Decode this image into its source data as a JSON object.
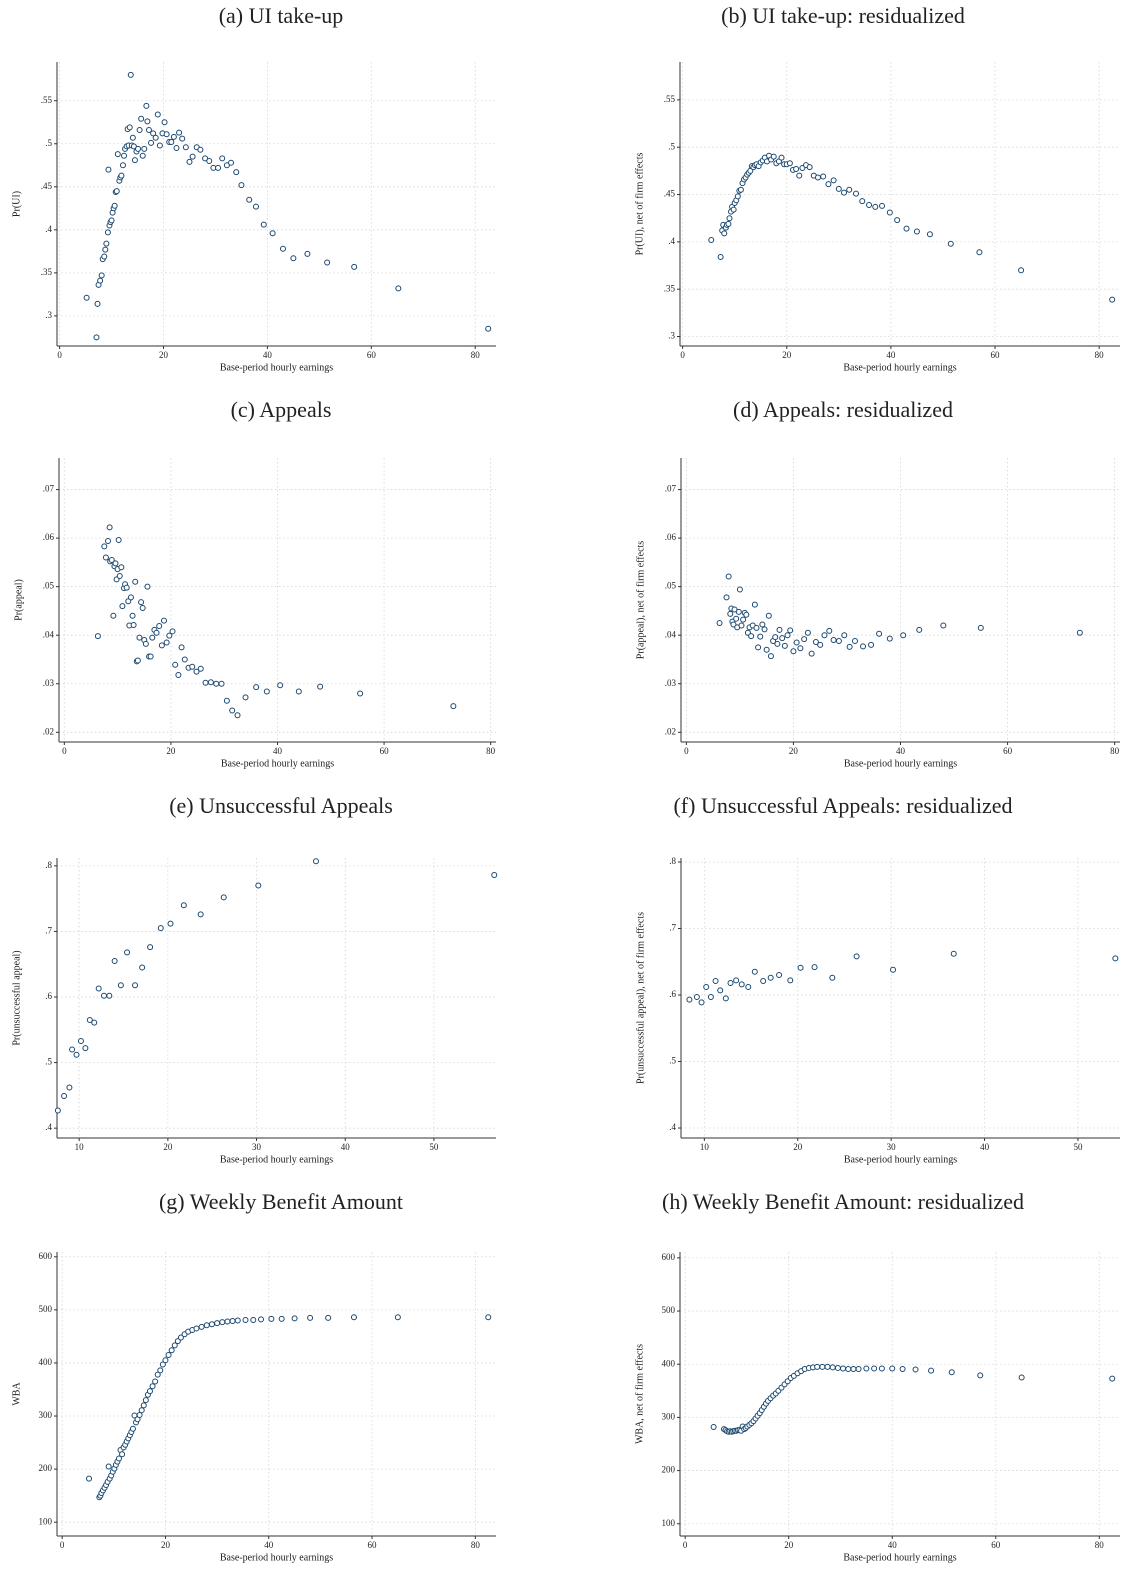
{
  "chart_data": [
    {
      "type": "scatter",
      "title": "(a) UI take-up",
      "x_label": "Base-period hourly earnings",
      "y_label": "Pr(UI)",
      "color": "#1a476f",
      "grid": true,
      "xlim": [
        -0.5,
        84
      ],
      "ylim": [
        0.265,
        0.595
      ],
      "xticks": [
        0,
        20,
        40,
        60,
        80
      ],
      "yticks": [
        {
          "value": 0.3,
          "label": ".3"
        },
        {
          "value": 0.35,
          "label": ".35"
        },
        {
          "value": 0.4,
          "label": ".4"
        },
        {
          "value": 0.45,
          "label": ".45"
        },
        {
          "value": 0.5,
          "label": ".5"
        },
        {
          "value": 0.55,
          "label": ".55"
        }
      ],
      "x": [
        5.2,
        7.1,
        7.3,
        7.5,
        7.8,
        8.1,
        8.3,
        8.6,
        8.8,
        9.0,
        9.3,
        9.4,
        9.6,
        9.8,
        10.0,
        10.2,
        10.4,
        10.6,
        10.8,
        11.0,
        11.2,
        11.5,
        11.7,
        11.9,
        12.2,
        12.4,
        12.6,
        12.9,
        13.1,
        13.3,
        13.5,
        13.7,
        13.9,
        14.1,
        14.3,
        14.5,
        14.8,
        15.1,
        15.4,
        15.7,
        16.0,
        16.3,
        16.7,
        16.9,
        17.2,
        17.6,
        18.0,
        18.5,
        18.9,
        19.3,
        19.8,
        20.2,
        20.6,
        21.1,
        21.5,
        22.0,
        22.5,
        23.0,
        23.6,
        24.3,
        25.0,
        25.6,
        26.4,
        27.1,
        28.0,
        28.8,
        29.6,
        30.5,
        31.3,
        32.2,
        33.0,
        34.0,
        35.0,
        36.5,
        37.8,
        39.3,
        41.0,
        43.0,
        45.0,
        47.7,
        51.5,
        56.7,
        65.2,
        82.5
      ],
      "values": [
        0.321,
        0.275,
        0.314,
        0.336,
        0.341,
        0.347,
        0.366,
        0.369,
        0.377,
        0.384,
        0.397,
        0.47,
        0.405,
        0.409,
        0.411,
        0.42,
        0.425,
        0.428,
        0.444,
        0.445,
        0.488,
        0.457,
        0.461,
        0.463,
        0.475,
        0.486,
        0.494,
        0.497,
        0.517,
        0.498,
        0.519,
        0.58,
        0.498,
        0.507,
        0.497,
        0.481,
        0.491,
        0.494,
        0.516,
        0.529,
        0.486,
        0.494,
        0.544,
        0.526,
        0.516,
        0.501,
        0.512,
        0.507,
        0.534,
        0.498,
        0.512,
        0.525,
        0.511,
        0.502,
        0.502,
        0.508,
        0.495,
        0.513,
        0.506,
        0.496,
        0.479,
        0.485,
        0.496,
        0.493,
        0.483,
        0.48,
        0.472,
        0.472,
        0.483,
        0.475,
        0.478,
        0.467,
        0.452,
        0.435,
        0.427,
        0.406,
        0.396,
        0.378,
        0.367,
        0.372,
        0.362,
        0.357,
        0.332,
        0.285
      ]
    },
    {
      "type": "scatter",
      "title": "(b) UI take-up: residualized",
      "x_label": "Base-period hourly earnings",
      "y_label": "Pr(UI), net of firm effects",
      "color": "#1a476f",
      "grid": true,
      "xlim": [
        -0.5,
        84
      ],
      "ylim": [
        0.29,
        0.59
      ],
      "xticks": [
        0,
        20,
        40,
        60,
        80
      ],
      "yticks": [
        {
          "value": 0.3,
          "label": ".3"
        },
        {
          "value": 0.35,
          "label": ".35"
        },
        {
          "value": 0.4,
          "label": ".4"
        },
        {
          "value": 0.45,
          "label": ".45"
        },
        {
          "value": 0.5,
          "label": ".5"
        },
        {
          "value": 0.55,
          "label": ".55"
        }
      ],
      "x": [
        5.5,
        7.3,
        7.6,
        7.8,
        8.0,
        8.3,
        8.5,
        8.8,
        9.0,
        9.3,
        9.5,
        9.8,
        10.0,
        10.3,
        10.6,
        10.9,
        11.2,
        11.5,
        11.8,
        12.1,
        12.4,
        12.7,
        13.0,
        13.3,
        13.6,
        13.9,
        14.2,
        14.6,
        15.0,
        15.4,
        15.8,
        16.2,
        16.6,
        17.0,
        17.5,
        18.0,
        18.5,
        19.0,
        19.5,
        20.0,
        20.6,
        21.2,
        21.8,
        22.4,
        23.0,
        23.7,
        24.4,
        25.2,
        26.0,
        27.0,
        28.0,
        29.0,
        30.0,
        31.0,
        32.0,
        33.3,
        34.5,
        35.8,
        37.0,
        38.3,
        39.8,
        41.2,
        43.0,
        45.0,
        47.5,
        51.5,
        57.0,
        65.0,
        82.5
      ],
      "values": [
        0.402,
        0.384,
        0.412,
        0.418,
        0.409,
        0.415,
        0.418,
        0.419,
        0.425,
        0.432,
        0.437,
        0.434,
        0.441,
        0.444,
        0.448,
        0.454,
        0.455,
        0.462,
        0.466,
        0.468,
        0.471,
        0.473,
        0.475,
        0.48,
        0.479,
        0.481,
        0.482,
        0.48,
        0.484,
        0.486,
        0.489,
        0.485,
        0.491,
        0.487,
        0.49,
        0.483,
        0.485,
        0.489,
        0.482,
        0.482,
        0.483,
        0.476,
        0.477,
        0.47,
        0.478,
        0.481,
        0.479,
        0.47,
        0.468,
        0.469,
        0.461,
        0.465,
        0.456,
        0.452,
        0.455,
        0.451,
        0.443,
        0.439,
        0.437,
        0.438,
        0.431,
        0.423,
        0.414,
        0.411,
        0.408,
        0.398,
        0.389,
        0.37,
        0.339
      ]
    },
    {
      "type": "scatter",
      "title": "(c) Appeals",
      "x_label": "Base-period hourly earnings",
      "y_label": "Pr(appeal)",
      "color": "#1a476f",
      "grid": true,
      "xlim": [
        -1,
        81
      ],
      "ylim": [
        0.018,
        0.0765
      ],
      "xticks": [
        0,
        20,
        40,
        60,
        80
      ],
      "yticks": [
        {
          "value": 0.02,
          "label": ".02"
        },
        {
          "value": 0.03,
          "label": ".03"
        },
        {
          "value": 0.04,
          "label": ".04"
        },
        {
          "value": 0.05,
          "label": ".05"
        },
        {
          "value": 0.06,
          "label": ".06"
        },
        {
          "value": 0.07,
          "label": ".07"
        }
      ],
      "x": [
        6.3,
        7.5,
        7.8,
        8.2,
        8.5,
        8.6,
        8.9,
        9.2,
        9.4,
        9.6,
        9.8,
        10.0,
        10.2,
        10.4,
        10.7,
        10.9,
        11.2,
        11.4,
        11.7,
        12.0,
        12.2,
        12.5,
        12.8,
        13.0,
        13.3,
        13.6,
        13.8,
        14.1,
        14.4,
        14.7,
        15.0,
        15.3,
        15.6,
        15.9,
        16.2,
        16.5,
        16.9,
        17.3,
        17.8,
        18.3,
        18.7,
        19.2,
        19.7,
        20.3,
        20.8,
        21.4,
        22.0,
        22.6,
        23.3,
        24.0,
        24.8,
        25.6,
        26.5,
        27.5,
        28.5,
        29.5,
        30.5,
        31.5,
        32.5,
        34.0,
        36.0,
        38.0,
        40.5,
        44.0,
        48.0,
        55.5,
        73.0
      ],
      "values": [
        0.0398,
        0.0583,
        0.056,
        0.0594,
        0.0622,
        0.0552,
        0.0555,
        0.044,
        0.0542,
        0.0548,
        0.0515,
        0.0536,
        0.0596,
        0.0522,
        0.054,
        0.046,
        0.0497,
        0.0505,
        0.0498,
        0.047,
        0.042,
        0.0478,
        0.044,
        0.0421,
        0.051,
        0.0346,
        0.0348,
        0.0395,
        0.0468,
        0.0456,
        0.039,
        0.0382,
        0.05,
        0.0356,
        0.0356,
        0.0395,
        0.0411,
        0.0405,
        0.0419,
        0.0379,
        0.043,
        0.0385,
        0.0399,
        0.0408,
        0.0339,
        0.0318,
        0.0375,
        0.035,
        0.0333,
        0.0335,
        0.0325,
        0.0331,
        0.0302,
        0.0303,
        0.03,
        0.03,
        0.0265,
        0.0245,
        0.0235,
        0.0272,
        0.0293,
        0.0284,
        0.0297,
        0.0284,
        0.0294,
        0.028,
        0.0254
      ]
    },
    {
      "type": "scatter",
      "title": "(d) Appeals: residualized",
      "x_label": "Base-period hourly earnings",
      "y_label": "Pr(appeal), net of firm effects",
      "color": "#1a476f",
      "grid": true,
      "xlim": [
        -1,
        81
      ],
      "ylim": [
        0.018,
        0.0765
      ],
      "xticks": [
        0,
        20,
        40,
        60,
        80
      ],
      "yticks": [
        {
          "value": 0.02,
          "label": ".02"
        },
        {
          "value": 0.03,
          "label": ".03"
        },
        {
          "value": 0.04,
          "label": ".04"
        },
        {
          "value": 0.05,
          "label": ".05"
        },
        {
          "value": 0.06,
          "label": ".06"
        },
        {
          "value": 0.07,
          "label": ".07"
        }
      ],
      "x": [
        6.2,
        7.5,
        7.9,
        8.2,
        8.4,
        8.6,
        8.8,
        9.0,
        9.3,
        9.5,
        9.8,
        10.0,
        10.3,
        10.6,
        10.9,
        11.2,
        11.5,
        11.8,
        12.1,
        12.4,
        12.8,
        13.1,
        13.4,
        13.8,
        14.2,
        14.6,
        15.0,
        15.4,
        15.8,
        16.2,
        16.6,
        17.0,
        17.4,
        17.9,
        18.4,
        18.9,
        19.4,
        20.0,
        20.6,
        21.3,
        22.0,
        22.7,
        23.4,
        24.2,
        25.0,
        25.8,
        26.7,
        27.5,
        28.5,
        29.5,
        30.5,
        31.5,
        33.0,
        34.5,
        36.0,
        38.0,
        40.5,
        43.5,
        48.0,
        55.0,
        73.5
      ],
      "values": [
        0.0425,
        0.0478,
        0.0521,
        0.0444,
        0.0455,
        0.0428,
        0.0422,
        0.0453,
        0.0434,
        0.0416,
        0.0448,
        0.0494,
        0.042,
        0.0432,
        0.0446,
        0.0442,
        0.0405,
        0.0416,
        0.0398,
        0.042,
        0.0463,
        0.0415,
        0.0375,
        0.0397,
        0.0422,
        0.0412,
        0.037,
        0.044,
        0.0357,
        0.0388,
        0.0396,
        0.0382,
        0.0411,
        0.0394,
        0.0378,
        0.04,
        0.041,
        0.0367,
        0.0385,
        0.0373,
        0.0392,
        0.0405,
        0.0362,
        0.0386,
        0.038,
        0.04,
        0.0409,
        0.039,
        0.0388,
        0.04,
        0.0376,
        0.0388,
        0.0377,
        0.038,
        0.0403,
        0.0393,
        0.04,
        0.0411,
        0.042,
        0.0415,
        0.0405
      ]
    },
    {
      "type": "scatter",
      "title": "(e) Unsuccessful Appeals",
      "x_label": "Base-period hourly earnings",
      "y_label": "Pr(unsuccessful appeal)",
      "color": "#1a476f",
      "grid": true,
      "xlim": [
        7.5,
        57
      ],
      "ylim": [
        0.385,
        0.812
      ],
      "xticks": [
        10,
        20,
        30,
        40,
        50
      ],
      "yticks": [
        {
          "value": 0.4,
          "label": ".4"
        },
        {
          "value": 0.5,
          "label": ".5"
        },
        {
          "value": 0.6,
          "label": ".6"
        },
        {
          "value": 0.7,
          "label": ".7"
        },
        {
          "value": 0.8,
          "label": ".8"
        }
      ],
      "x": [
        7.6,
        8.3,
        8.9,
        9.2,
        9.7,
        10.2,
        10.7,
        11.2,
        11.7,
        12.2,
        12.8,
        13.4,
        14.0,
        14.7,
        15.4,
        16.3,
        17.1,
        18.0,
        19.2,
        20.3,
        21.8,
        23.7,
        26.3,
        30.2,
        36.7,
        56.8
      ],
      "values": [
        0.427,
        0.449,
        0.462,
        0.52,
        0.512,
        0.533,
        0.522,
        0.565,
        0.561,
        0.613,
        0.602,
        0.602,
        0.655,
        0.618,
        0.668,
        0.618,
        0.645,
        0.676,
        0.705,
        0.712,
        0.74,
        0.726,
        0.752,
        0.77,
        0.807,
        0.786
      ]
    },
    {
      "type": "scatter",
      "title": "(f) Unsuccessful Appeals: residualized",
      "x_label": "Base-period hourly earnings",
      "y_label": "Pr(unsuccessful appeal), net of firm effects",
      "color": "#1a476f",
      "grid": true,
      "xlim": [
        7.5,
        54.5
      ],
      "ylim": [
        0.385,
        0.806
      ],
      "xticks": [
        10,
        20,
        30,
        40,
        50
      ],
      "yticks": [
        {
          "value": 0.4,
          "label": ".4"
        },
        {
          "value": 0.5,
          "label": ".5"
        },
        {
          "value": 0.6,
          "label": ".6"
        },
        {
          "value": 0.7,
          "label": ".7"
        },
        {
          "value": 0.8,
          "label": ".8"
        }
      ],
      "x": [
        8.4,
        9.2,
        9.7,
        10.2,
        10.7,
        11.2,
        11.7,
        12.3,
        12.8,
        13.4,
        14.0,
        14.7,
        15.4,
        16.3,
        17.1,
        18.0,
        19.2,
        20.3,
        21.8,
        23.7,
        26.3,
        30.2,
        36.7,
        54.0
      ],
      "values": [
        0.593,
        0.597,
        0.589,
        0.612,
        0.597,
        0.621,
        0.607,
        0.595,
        0.618,
        0.622,
        0.616,
        0.612,
        0.635,
        0.621,
        0.626,
        0.63,
        0.622,
        0.641,
        0.642,
        0.626,
        0.658,
        0.638,
        0.662,
        0.655
      ]
    },
    {
      "type": "scatter",
      "title": "(g) Weekly Benefit Amount",
      "x_label": "Base-period hourly earnings",
      "y_label": "WBA",
      "color": "#1a476f",
      "grid": true,
      "xlim": [
        -1,
        84
      ],
      "ylim": [
        74,
        609
      ],
      "xticks": [
        0,
        20,
        40,
        60,
        80
      ],
      "yticks": [
        100,
        200,
        300,
        400,
        500,
        600
      ],
      "x": [
        5.2,
        7.2,
        7.4,
        7.6,
        7.9,
        8.2,
        8.5,
        8.8,
        9.0,
        9.2,
        9.5,
        9.8,
        10.1,
        10.4,
        10.7,
        11.0,
        11.3,
        11.6,
        11.9,
        12.2,
        12.5,
        12.8,
        13.1,
        13.4,
        13.7,
        14.0,
        14.3,
        14.6,
        15.0,
        15.4,
        15.8,
        16.2,
        16.6,
        17.0,
        17.5,
        18.0,
        18.5,
        19.0,
        19.5,
        20.0,
        20.6,
        21.2,
        21.8,
        22.4,
        23.0,
        23.7,
        24.4,
        25.2,
        26.0,
        27.0,
        28.0,
        29.0,
        30.0,
        31.0,
        32.0,
        33.0,
        34.0,
        35.5,
        37.0,
        38.5,
        40.5,
        42.5,
        45.0,
        48.0,
        51.5,
        56.5,
        65.0,
        82.5
      ],
      "values": [
        182,
        147,
        150,
        155,
        160,
        165,
        170,
        176,
        205,
        182,
        188,
        195,
        201,
        208,
        214,
        220,
        236,
        228,
        241,
        246,
        252,
        258,
        264,
        270,
        276,
        301,
        288,
        294,
        302,
        311,
        320,
        330,
        340,
        347,
        356,
        365,
        378,
        386,
        397,
        405,
        415,
        424,
        433,
        441,
        448,
        454,
        459,
        462,
        465,
        468,
        471,
        473,
        475,
        477,
        478,
        479,
        480,
        481,
        481,
        482,
        483,
        483,
        484,
        485,
        485,
        486,
        486,
        486
      ]
    },
    {
      "type": "scatter",
      "title": "(h) Weekly Benefit Amount: residualized",
      "x_label": "Base-period hourly earnings",
      "y_label": "WBA, net of firm effects",
      "color": "#1a476f",
      "grid": true,
      "xlim": [
        -1,
        84
      ],
      "ylim": [
        77,
        611
      ],
      "xticks": [
        0,
        20,
        40,
        60,
        80
      ],
      "yticks": [
        100,
        200,
        300,
        400,
        500,
        600
      ],
      "x": [
        5.5,
        7.5,
        7.8,
        8.1,
        8.4,
        8.7,
        9.0,
        9.3,
        9.6,
        9.9,
        10.2,
        10.5,
        10.8,
        11.1,
        11.4,
        11.7,
        12.0,
        12.4,
        12.8,
        13.2,
        13.6,
        14.0,
        14.4,
        14.8,
        15.2,
        15.6,
        16.0,
        16.5,
        17.0,
        17.5,
        18.0,
        18.6,
        19.2,
        19.8,
        20.4,
        21.0,
        21.7,
        22.4,
        23.1,
        23.9,
        24.7,
        25.5,
        26.5,
        27.5,
        28.5,
        29.5,
        30.5,
        31.5,
        32.5,
        33.5,
        35.0,
        36.5,
        38.0,
        40.0,
        42.0,
        44.5,
        47.5,
        51.5,
        57.0,
        65.0,
        82.5
      ],
      "values": [
        282,
        278,
        276,
        274,
        273,
        274,
        273,
        274,
        275,
        275,
        276,
        276,
        275,
        283,
        278,
        280,
        283,
        286,
        289,
        293,
        298,
        303,
        308,
        314,
        320,
        326,
        331,
        336,
        341,
        345,
        350,
        356,
        362,
        368,
        374,
        378,
        383,
        387,
        391,
        393,
        394,
        395,
        395,
        395,
        394,
        393,
        392,
        391,
        391,
        391,
        392,
        392,
        392,
        392,
        391,
        390,
        388,
        385,
        379,
        375,
        373
      ]
    }
  ]
}
